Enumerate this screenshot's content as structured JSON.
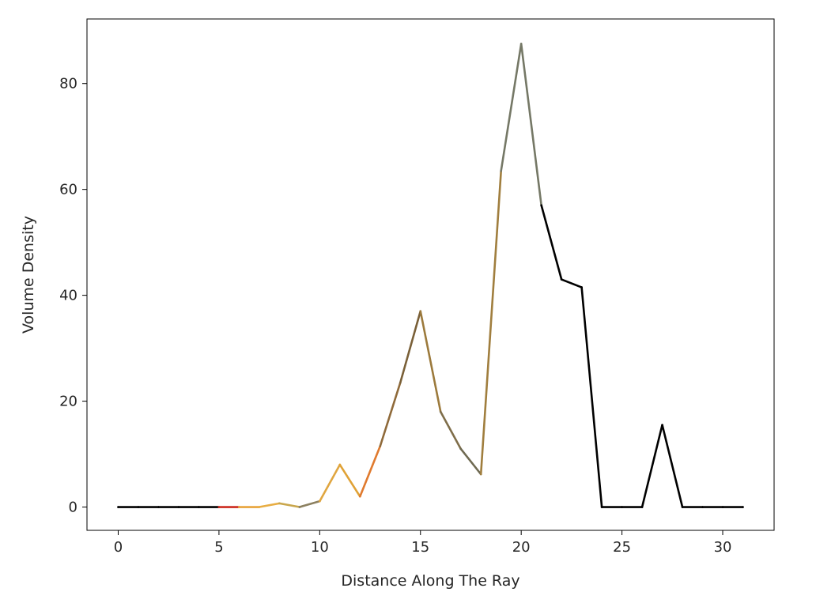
{
  "chart_data": {
    "type": "line",
    "title": "",
    "xlabel": "Distance Along The Ray",
    "ylabel": "Volume Density",
    "xlim": [
      -1.55,
      32.55
    ],
    "ylim": [
      -4.4,
      92.2
    ],
    "xticks": [
      0,
      5,
      10,
      15,
      20,
      25,
      30
    ],
    "yticks": [
      0,
      20,
      40,
      60,
      80
    ],
    "grid": false,
    "legend": "none",
    "x": [
      0,
      1,
      2,
      3,
      4,
      5,
      6,
      7,
      8,
      9,
      10,
      11,
      12,
      13,
      14,
      15,
      16,
      17,
      18,
      19,
      20,
      21,
      22,
      23,
      24,
      25,
      26,
      27,
      28,
      29,
      30,
      31
    ],
    "y": [
      0,
      0,
      0,
      0,
      0,
      0,
      0,
      0,
      0.7,
      0,
      1.1,
      8,
      2,
      11.5,
      23.5,
      37,
      18,
      11,
      6.2,
      63.5,
      87.5,
      57,
      43,
      41.5,
      0,
      0,
      0,
      15.5,
      0,
      0,
      0,
      0
    ],
    "segment_colors": [
      "#000000",
      "#000000",
      "#000000",
      "#000000",
      "#000000",
      "#cc2a1e",
      "#e8a33a",
      "#e8ad42",
      "#c9a64c",
      "#8c8060",
      "#e0a640",
      "#e0a236",
      "#e07a2e",
      "#8f6a3a",
      "#7a6038",
      "#9c7a3c",
      "#7f6e4a",
      "#6f6a52",
      "#a07e3e",
      "#757866",
      "#757866",
      "#000000",
      "#000000",
      "#000000",
      "#000000",
      "#000000",
      "#000000",
      "#000000",
      "#000000",
      "#000000",
      "#000000"
    ]
  }
}
